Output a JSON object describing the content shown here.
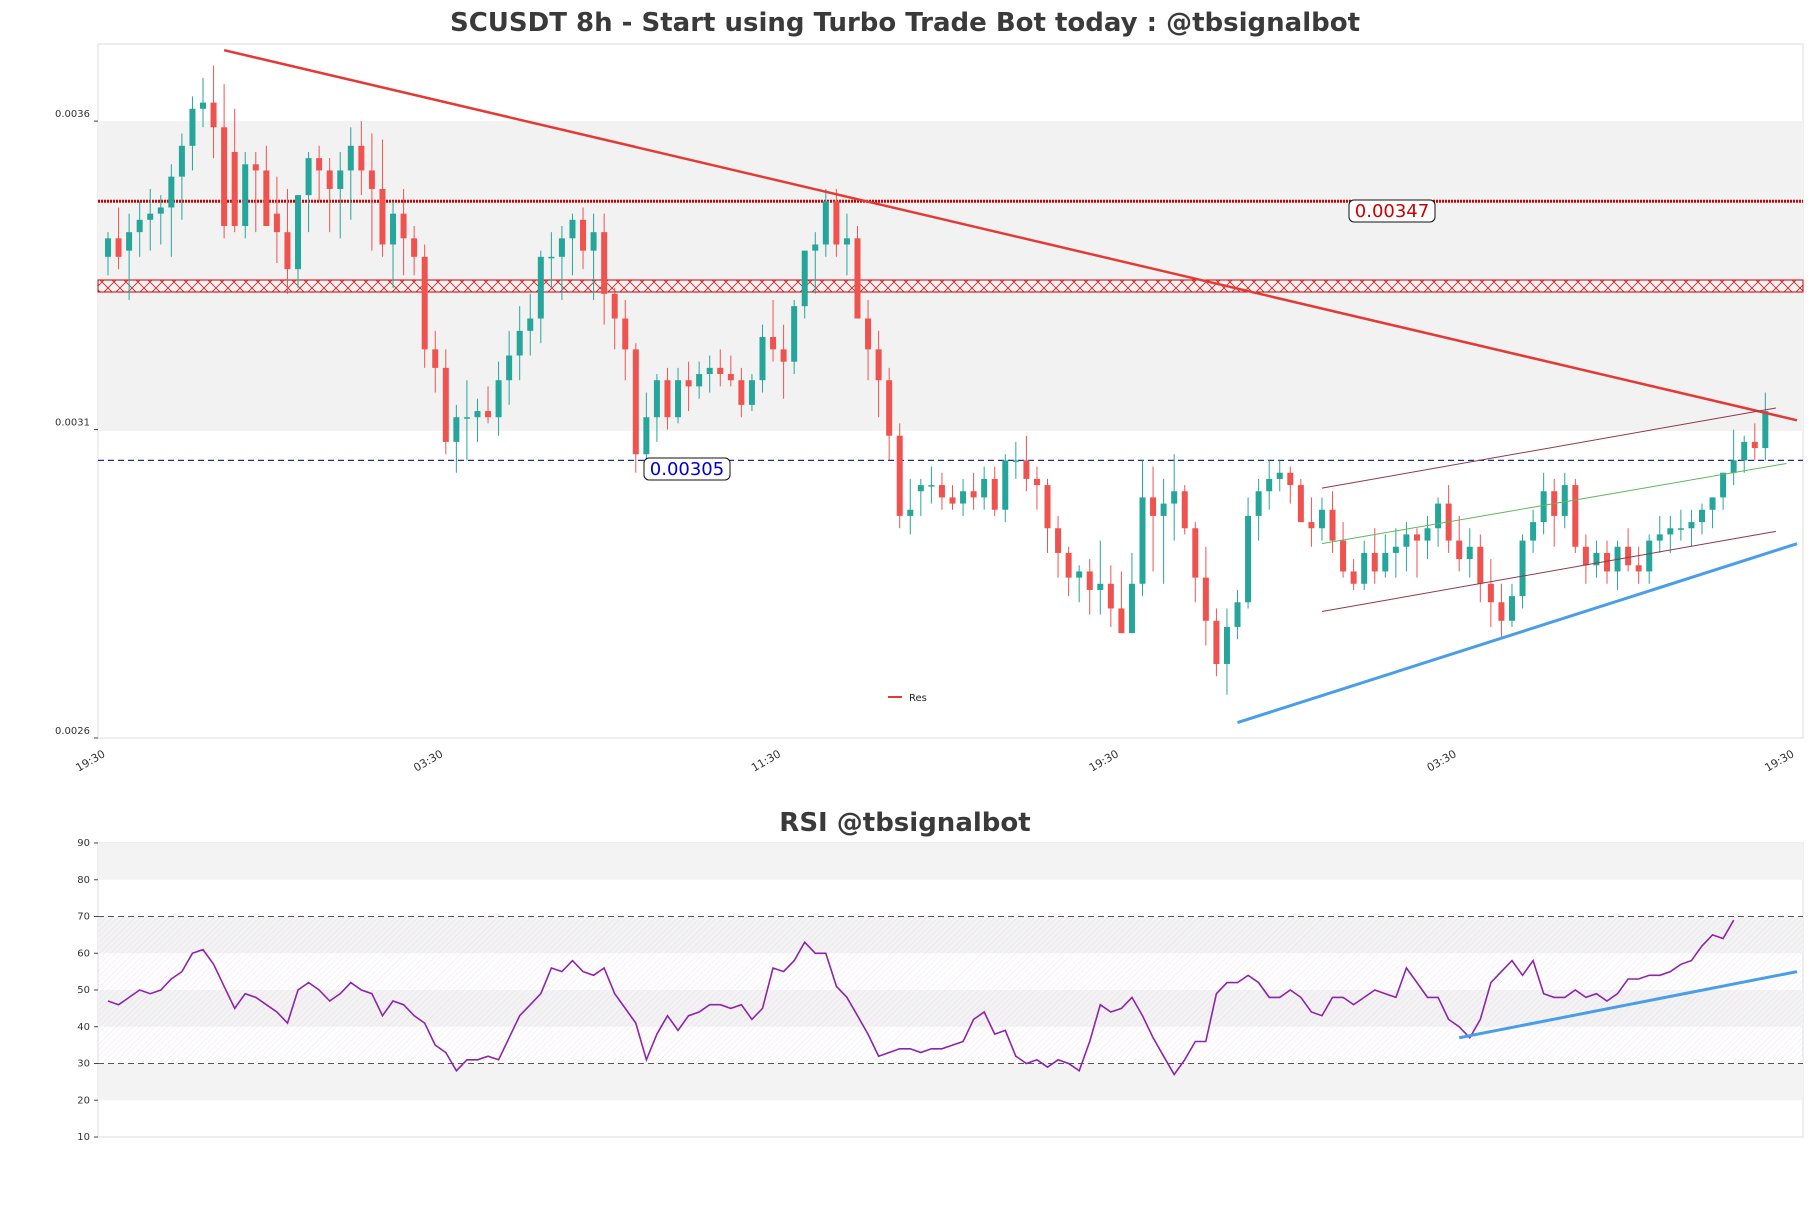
{
  "chart_data": [
    {
      "type": "candlestick",
      "title": "SCUSDT 8h - Start using Turbo Trade Bot today : @tbsignalbot",
      "ylim": [
        0.0026,
        0.003725
      ],
      "yticks": [
        "0.0026",
        "0.0031",
        "0.0036"
      ],
      "xticks": [
        "19:30",
        "03:30",
        "11:30",
        "19:30",
        "03:30",
        "19:30"
      ],
      "xtick_index": [
        0,
        32,
        64,
        96,
        128,
        160
      ],
      "xlim": [
        0,
        160
      ],
      "grid": "off",
      "legend": {
        "position": "lower-center",
        "entries": [
          "Res"
        ]
      },
      "levels": {
        "resistance": "0.00347",
        "support": "0.00305",
        "resistance_value": 0.00347,
        "support_value": 0.00305
      },
      "colors": {
        "up": "#26a69a",
        "down": "#ef5350",
        "resistance": "#cc0000",
        "support": "#1a2ea0",
        "trend": "#e53935",
        "uptrend": "#4a9ee8",
        "channel_upper": "#8b3a4a",
        "channel_mid": "#5cb85c",
        "shade": "#f2f2f2"
      },
      "candles": [
        [
          0.00338,
          0.00342,
          0.00335,
          0.00341
        ],
        [
          0.00341,
          0.00346,
          0.00336,
          0.00338
        ],
        [
          0.00339,
          0.00345,
          0.00331,
          0.00342
        ],
        [
          0.00342,
          0.00347,
          0.00338,
          0.00344
        ],
        [
          0.00344,
          0.00349,
          0.00339,
          0.00345
        ],
        [
          0.00345,
          0.00348,
          0.0034,
          0.00346
        ],
        [
          0.00346,
          0.00353,
          0.00338,
          0.00351
        ],
        [
          0.00351,
          0.00358,
          0.00344,
          0.00356
        ],
        [
          0.00356,
          0.00364,
          0.00352,
          0.00362
        ],
        [
          0.00362,
          0.00367,
          0.00359,
          0.00363
        ],
        [
          0.00363,
          0.00369,
          0.00354,
          0.00359
        ],
        [
          0.00359,
          0.00366,
          0.00341,
          0.00343
        ],
        [
          0.00355,
          0.00362,
          0.00342,
          0.00343
        ],
        [
          0.00343,
          0.00355,
          0.00341,
          0.00353
        ],
        [
          0.00353,
          0.00355,
          0.00342,
          0.00352
        ],
        [
          0.00352,
          0.00356,
          0.00344,
          0.00343
        ],
        [
          0.00345,
          0.00351,
          0.00337,
          0.00342
        ],
        [
          0.00342,
          0.00349,
          0.00332,
          0.00336
        ],
        [
          0.00336,
          0.00348,
          0.00333,
          0.00348
        ],
        [
          0.00348,
          0.00355,
          0.00342,
          0.00354
        ],
        [
          0.00354,
          0.00356,
          0.00347,
          0.00352
        ],
        [
          0.00352,
          0.00354,
          0.00342,
          0.00349
        ],
        [
          0.00349,
          0.00355,
          0.00341,
          0.00352
        ],
        [
          0.00352,
          0.00359,
          0.00344,
          0.00356
        ],
        [
          0.00356,
          0.0036,
          0.00348,
          0.00352
        ],
        [
          0.00352,
          0.00358,
          0.00339,
          0.00349
        ],
        [
          0.00349,
          0.00357,
          0.00338,
          0.0034
        ],
        [
          0.0034,
          0.00347,
          0.00333,
          0.00345
        ],
        [
          0.00345,
          0.00349,
          0.00335,
          0.00341
        ],
        [
          0.00341,
          0.00343,
          0.00335,
          0.00338
        ],
        [
          0.00338,
          0.0034,
          0.0032,
          0.00323
        ],
        [
          0.00323,
          0.00326,
          0.00316,
          0.0032
        ],
        [
          0.0032,
          0.00323,
          0.00306,
          0.00308
        ],
        [
          0.00308,
          0.00314,
          0.00303,
          0.00312
        ],
        [
          0.00312,
          0.00318,
          0.00305,
          0.00312
        ],
        [
          0.00312,
          0.00315,
          0.00308,
          0.00313
        ],
        [
          0.00313,
          0.00317,
          0.00311,
          0.00312
        ],
        [
          0.00312,
          0.00321,
          0.00309,
          0.00318
        ],
        [
          0.00318,
          0.00326,
          0.00314,
          0.00322
        ],
        [
          0.00322,
          0.0033,
          0.00318,
          0.00326
        ],
        [
          0.00326,
          0.00332,
          0.00322,
          0.00328
        ],
        [
          0.00328,
          0.00339,
          0.00324,
          0.00338
        ],
        [
          0.00338,
          0.00342,
          0.00333,
          0.00338
        ],
        [
          0.00338,
          0.00343,
          0.00331,
          0.00341
        ],
        [
          0.00341,
          0.00345,
          0.00335,
          0.00344
        ],
        [
          0.00344,
          0.00346,
          0.00336,
          0.00339
        ],
        [
          0.00339,
          0.00345,
          0.00331,
          0.00342
        ],
        [
          0.00342,
          0.00345,
          0.00327,
          0.00332
        ],
        [
          0.00332,
          0.00333,
          0.00323,
          0.00328
        ],
        [
          0.00328,
          0.00331,
          0.00318,
          0.00323
        ],
        [
          0.00323,
          0.00324,
          0.00303,
          0.00306
        ],
        [
          0.00306,
          0.00316,
          0.00304,
          0.00312
        ],
        [
          0.00312,
          0.00319,
          0.00308,
          0.00318
        ],
        [
          0.00318,
          0.0032,
          0.0031,
          0.00312
        ],
        [
          0.00312,
          0.0032,
          0.00311,
          0.00318
        ],
        [
          0.00318,
          0.00321,
          0.00313,
          0.00317
        ],
        [
          0.00317,
          0.00321,
          0.00315,
          0.00319
        ],
        [
          0.00319,
          0.00322,
          0.00316,
          0.0032
        ],
        [
          0.0032,
          0.00323,
          0.00317,
          0.00319
        ],
        [
          0.00319,
          0.00322,
          0.00317,
          0.00318
        ],
        [
          0.00318,
          0.0032,
          0.00312,
          0.00314
        ],
        [
          0.00314,
          0.00319,
          0.00313,
          0.00318
        ],
        [
          0.00318,
          0.00327,
          0.00316,
          0.00325
        ],
        [
          0.00325,
          0.00331,
          0.00321,
          0.00323
        ],
        [
          0.00323,
          0.00327,
          0.00315,
          0.00321
        ],
        [
          0.00321,
          0.00331,
          0.00319,
          0.0033
        ],
        [
          0.0033,
          0.00339,
          0.00328,
          0.00339
        ],
        [
          0.00339,
          0.00342,
          0.00332,
          0.0034
        ],
        [
          0.0034,
          0.00349,
          0.00338,
          0.00347
        ],
        [
          0.00347,
          0.00349,
          0.00338,
          0.0034
        ],
        [
          0.0034,
          0.00345,
          0.00335,
          0.00341
        ],
        [
          0.00341,
          0.00343,
          0.00329,
          0.00328
        ],
        [
          0.00328,
          0.00331,
          0.00318,
          0.00323
        ],
        [
          0.00323,
          0.00326,
          0.00312,
          0.00318
        ],
        [
          0.00318,
          0.0032,
          0.00305,
          0.00309
        ],
        [
          0.00309,
          0.00311,
          0.00294,
          0.00296
        ],
        [
          0.00296,
          0.00302,
          0.00293,
          0.00297
        ],
        [
          0.003,
          0.00302,
          0.00296,
          0.00301
        ],
        [
          0.00301,
          0.00304,
          0.00298,
          0.00301
        ],
        [
          0.00301,
          0.00303,
          0.00297,
          0.00299
        ],
        [
          0.00299,
          0.00301,
          0.00297,
          0.00298
        ],
        [
          0.00298,
          0.00302,
          0.00296,
          0.003
        ],
        [
          0.003,
          0.00303,
          0.00297,
          0.00299
        ],
        [
          0.00299,
          0.00304,
          0.00297,
          0.00302
        ],
        [
          0.00302,
          0.00304,
          0.00296,
          0.00297
        ],
        [
          0.00297,
          0.00306,
          0.00295,
          0.00305
        ],
        [
          0.00305,
          0.00308,
          0.00302,
          0.00305
        ],
        [
          0.00305,
          0.00309,
          0.003,
          0.00302
        ],
        [
          0.00302,
          0.00304,
          0.00297,
          0.00301
        ],
        [
          0.00301,
          0.00302,
          0.0029,
          0.00294
        ],
        [
          0.00294,
          0.00296,
          0.00286,
          0.0029
        ],
        [
          0.0029,
          0.00291,
          0.00283,
          0.00286
        ],
        [
          0.00286,
          0.00288,
          0.00282,
          0.00287
        ],
        [
          0.00287,
          0.00289,
          0.0028,
          0.00284
        ],
        [
          0.00284,
          0.00292,
          0.0028,
          0.00285
        ],
        [
          0.00285,
          0.00288,
          0.00278,
          0.00281
        ],
        [
          0.00281,
          0.00287,
          0.00277,
          0.00277
        ],
        [
          0.00277,
          0.0029,
          0.00277,
          0.00285
        ],
        [
          0.00285,
          0.00305,
          0.00283,
          0.00299
        ],
        [
          0.00299,
          0.00304,
          0.00287,
          0.00296
        ],
        [
          0.00296,
          0.00302,
          0.00285,
          0.00298
        ],
        [
          0.00298,
          0.00306,
          0.00292,
          0.003
        ],
        [
          0.003,
          0.00301,
          0.00293,
          0.00294
        ],
        [
          0.00294,
          0.00295,
          0.00282,
          0.00286
        ],
        [
          0.00286,
          0.00291,
          0.00275,
          0.00279
        ],
        [
          0.00279,
          0.00281,
          0.0027,
          0.00272
        ],
        [
          0.00272,
          0.00281,
          0.00267,
          0.00278
        ],
        [
          0.00278,
          0.00284,
          0.00276,
          0.00282
        ],
        [
          0.00282,
          0.00299,
          0.00281,
          0.00296
        ],
        [
          0.00296,
          0.00302,
          0.00292,
          0.003
        ],
        [
          0.003,
          0.00305,
          0.00297,
          0.00302
        ],
        [
          0.00302,
          0.00305,
          0.003,
          0.00303
        ],
        [
          0.00303,
          0.00304,
          0.00298,
          0.00301
        ],
        [
          0.00301,
          0.00302,
          0.00295,
          0.00295
        ],
        [
          0.00295,
          0.00299,
          0.00291,
          0.00294
        ],
        [
          0.00294,
          0.00299,
          0.00292,
          0.00297
        ],
        [
          0.00297,
          0.003,
          0.0029,
          0.00292
        ],
        [
          0.00292,
          0.00295,
          0.00286,
          0.00287
        ],
        [
          0.00287,
          0.00289,
          0.00284,
          0.00285
        ],
        [
          0.00285,
          0.00292,
          0.00284,
          0.0029
        ],
        [
          0.0029,
          0.00294,
          0.00285,
          0.00287
        ],
        [
          0.00287,
          0.00293,
          0.00286,
          0.0029
        ],
        [
          0.0029,
          0.00294,
          0.00286,
          0.00291
        ],
        [
          0.00291,
          0.00295,
          0.00287,
          0.00293
        ],
        [
          0.00293,
          0.00294,
          0.00286,
          0.00292
        ],
        [
          0.00292,
          0.00296,
          0.00289,
          0.00294
        ],
        [
          0.00294,
          0.00299,
          0.00291,
          0.00298
        ],
        [
          0.00298,
          0.00301,
          0.0029,
          0.00292
        ],
        [
          0.00292,
          0.00296,
          0.00287,
          0.00289
        ],
        [
          0.00289,
          0.00294,
          0.00286,
          0.00291
        ],
        [
          0.00291,
          0.00293,
          0.00282,
          0.00285
        ],
        [
          0.00285,
          0.00289,
          0.00278,
          0.00282
        ],
        [
          0.00282,
          0.00285,
          0.00276,
          0.00279
        ],
        [
          0.00279,
          0.00285,
          0.00278,
          0.00283
        ],
        [
          0.00283,
          0.00293,
          0.00281,
          0.00292
        ],
        [
          0.00292,
          0.00297,
          0.0029,
          0.00295
        ],
        [
          0.00295,
          0.00303,
          0.00293,
          0.003
        ],
        [
          0.003,
          0.00302,
          0.00291,
          0.00296
        ],
        [
          0.00296,
          0.00303,
          0.00294,
          0.00301
        ],
        [
          0.00301,
          0.00302,
          0.0029,
          0.00291
        ],
        [
          0.00291,
          0.00293,
          0.00285,
          0.00288
        ],
        [
          0.00288,
          0.00292,
          0.00286,
          0.0029
        ],
        [
          0.0029,
          0.00292,
          0.00285,
          0.00287
        ],
        [
          0.00287,
          0.00292,
          0.00284,
          0.00291
        ],
        [
          0.00291,
          0.00294,
          0.00287,
          0.00288
        ],
        [
          0.00288,
          0.00291,
          0.00285,
          0.00287
        ],
        [
          0.00287,
          0.00293,
          0.00285,
          0.00292
        ],
        [
          0.00292,
          0.00296,
          0.0029,
          0.00293
        ],
        [
          0.00293,
          0.00296,
          0.0029,
          0.00294
        ],
        [
          0.00294,
          0.00297,
          0.00292,
          0.00294
        ],
        [
          0.00294,
          0.00297,
          0.00291,
          0.00295
        ],
        [
          0.00295,
          0.00298,
          0.00293,
          0.00297
        ],
        [
          0.00297,
          0.00299,
          0.00294,
          0.00299
        ],
        [
          0.00299,
          0.00303,
          0.00297,
          0.00303
        ],
        [
          0.00303,
          0.0031,
          0.00301,
          0.00305
        ],
        [
          0.00305,
          0.00309,
          0.00303,
          0.00308
        ],
        [
          0.00308,
          0.00311,
          0.00305,
          0.00307
        ],
        [
          0.00307,
          0.00316,
          0.00305,
          0.00313
        ]
      ],
      "trendlines": [
        {
          "name": "Res",
          "from": [
            11,
            0.003715
          ],
          "to": [
            160,
            0.003115
          ]
        },
        {
          "name": "uptrend",
          "from": [
            107,
            0.002625
          ],
          "to": [
            160,
            0.002915
          ]
        },
        {
          "name": "channel-upper",
          "from": [
            115,
            0.003005
          ],
          "to": [
            158,
            0.003135
          ]
        },
        {
          "name": "channel-mid",
          "from": [
            115,
            0.002915
          ],
          "to": [
            159,
            0.003045
          ]
        },
        {
          "name": "channel-lower",
          "from": [
            115,
            0.002805
          ],
          "to": [
            158,
            0.002935
          ]
        }
      ]
    },
    {
      "type": "line",
      "title": "RSI @tbsignalbot",
      "ylim": [
        10,
        90
      ],
      "yticks": [
        "10",
        "20",
        "30",
        "40",
        "50",
        "60",
        "70",
        "80",
        "90"
      ],
      "overbought": 70,
      "oversold": 30,
      "color": "#8e24aa",
      "values": [
        47,
        46,
        48,
        50,
        49,
        50,
        53,
        55,
        60,
        61,
        57,
        51,
        45,
        49,
        48,
        46,
        44,
        41,
        50,
        52,
        50,
        47,
        49,
        52,
        50,
        49,
        43,
        47,
        46,
        43,
        41,
        35,
        33,
        28,
        31,
        31,
        32,
        31,
        37,
        43,
        46,
        49,
        56,
        55,
        58,
        55,
        54,
        56,
        49,
        45,
        41,
        31,
        38,
        43,
        39,
        43,
        44,
        46,
        46,
        45,
        46,
        42,
        45,
        56,
        55,
        58,
        63,
        60,
        60,
        51,
        48,
        43,
        38,
        32,
        33,
        34,
        34,
        33,
        34,
        34,
        35,
        36,
        42,
        44,
        38,
        39,
        32,
        30,
        31,
        29,
        31,
        30,
        28,
        36,
        46,
        44,
        45,
        48,
        43,
        37,
        32,
        27,
        31,
        36,
        36,
        49,
        52,
        52,
        54,
        52,
        48,
        48,
        50,
        48,
        44,
        43,
        48,
        48,
        46,
        48,
        50,
        49,
        48,
        56,
        52,
        48,
        48,
        42,
        40,
        37,
        42,
        52,
        55,
        58,
        54,
        58,
        49,
        48,
        48,
        50,
        48,
        49,
        47,
        49,
        53,
        53,
        54,
        54,
        55,
        57,
        58,
        62,
        65,
        64,
        69
      ],
      "trendline": {
        "from": [
          128,
          37
        ],
        "to": [
          160,
          55
        ]
      }
    }
  ]
}
